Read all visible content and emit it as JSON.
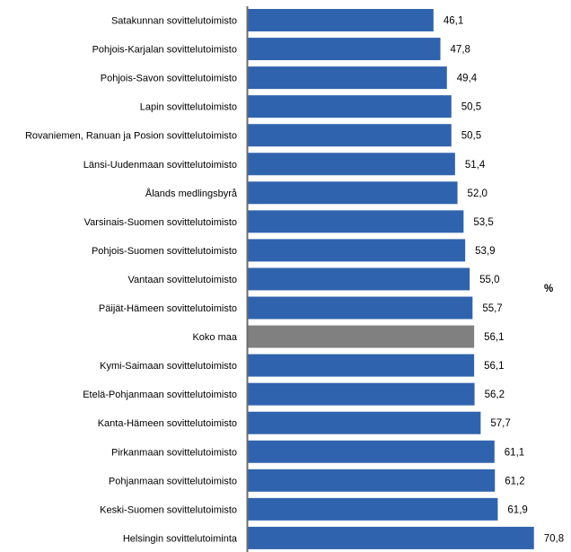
{
  "chart_data": {
    "type": "bar",
    "orientation": "horizontal",
    "categories": [
      "Satakunnan sovittelutoimisto",
      "Pohjois-Karjalan sovittelutoimisto",
      "Pohjois-Savon sovittelutoimisto",
      "Lapin sovittelutoimisto",
      "Rovaniemen, Ranuan ja Posion sovittelutoimisto",
      "Länsi-Uudenmaan sovittelutoimisto",
      "Ålands medlingsbyrå",
      "Varsinais-Suomen sovittelutoimisto",
      "Pohjois-Suomen sovittelutoimisto",
      "Vantaan sovittelutoimisto",
      "Päijät-Hämeen sovittelutoimisto",
      "Koko maa",
      "Kymi-Saimaan sovittelutoimisto",
      "Etelä-Pohjanmaan sovittelutoimisto",
      "Kanta-Hämeen sovittelutoimisto",
      "Pirkanmaan sovittelutoimisto",
      "Pohjanmaan sovittelutoimisto",
      "Keski-Suomen sovittelutoimisto",
      "Helsingin sovittelutoiminta"
    ],
    "values": [
      46.1,
      47.8,
      49.4,
      50.5,
      50.5,
      51.4,
      52.0,
      53.5,
      53.9,
      55.0,
      55.7,
      56.1,
      56.1,
      56.2,
      57.7,
      61.1,
      61.2,
      61.9,
      70.8
    ],
    "data_labels": [
      "46,1",
      "47,8",
      "49,4",
      "50,5",
      "50,5",
      "51,4",
      "52,0",
      "53,5",
      "53,9",
      "55,0",
      "55,7",
      "56,1",
      "56,1",
      "56,2",
      "57,7",
      "61,1",
      "61,2",
      "61,9",
      "70,8"
    ],
    "highlight_category": "Koko maa",
    "unit_label": "%",
    "xlim": [
      0,
      80
    ],
    "grid": false,
    "colors": {
      "bar": "#3063ad",
      "highlight": "#808080",
      "axis": "#6d6d6d"
    }
  }
}
